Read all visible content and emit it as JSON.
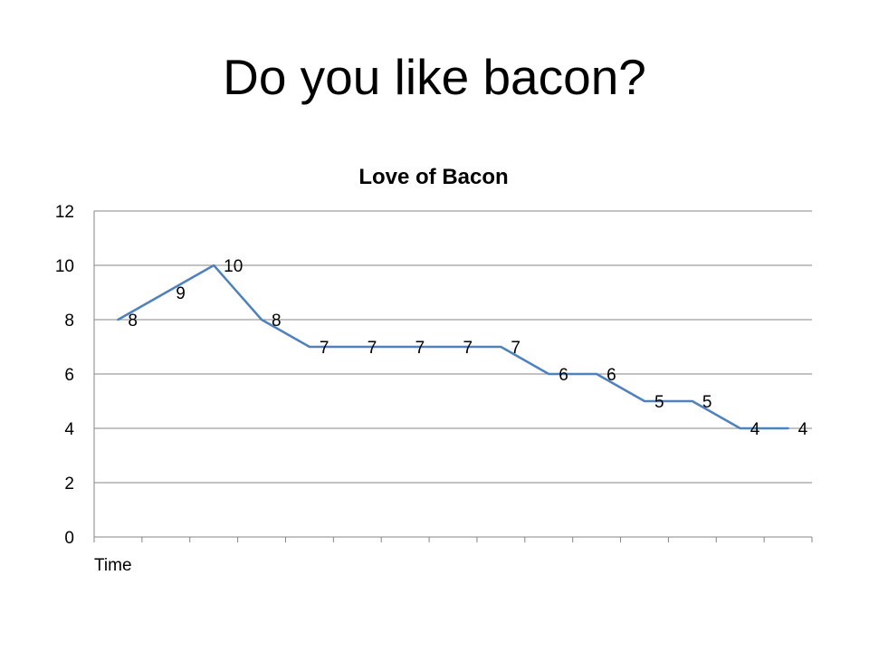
{
  "slide": {
    "title": "Do you like bacon?"
  },
  "chart_data": {
    "type": "line",
    "title": "Love of Bacon",
    "xlabel": "Time",
    "ylabel": "",
    "ylim": [
      0,
      12
    ],
    "yticks": [
      0,
      2,
      4,
      6,
      8,
      10,
      12
    ],
    "categories": [
      "",
      "",
      "",
      "",
      "",
      "",
      "",
      "",
      "",
      "",
      "",
      "",
      "",
      "",
      ""
    ],
    "series": [
      {
        "values": [
          8,
          9,
          10,
          8,
          7,
          7,
          7,
          7,
          7,
          6,
          6,
          5,
          5,
          4,
          4
        ]
      }
    ],
    "data_labels": true,
    "grid": {
      "horizontal": true,
      "vertical": false
    },
    "legend": "none",
    "colors": {
      "line": "#4f81bd",
      "grid": "#868686",
      "axis": "#868686"
    }
  }
}
